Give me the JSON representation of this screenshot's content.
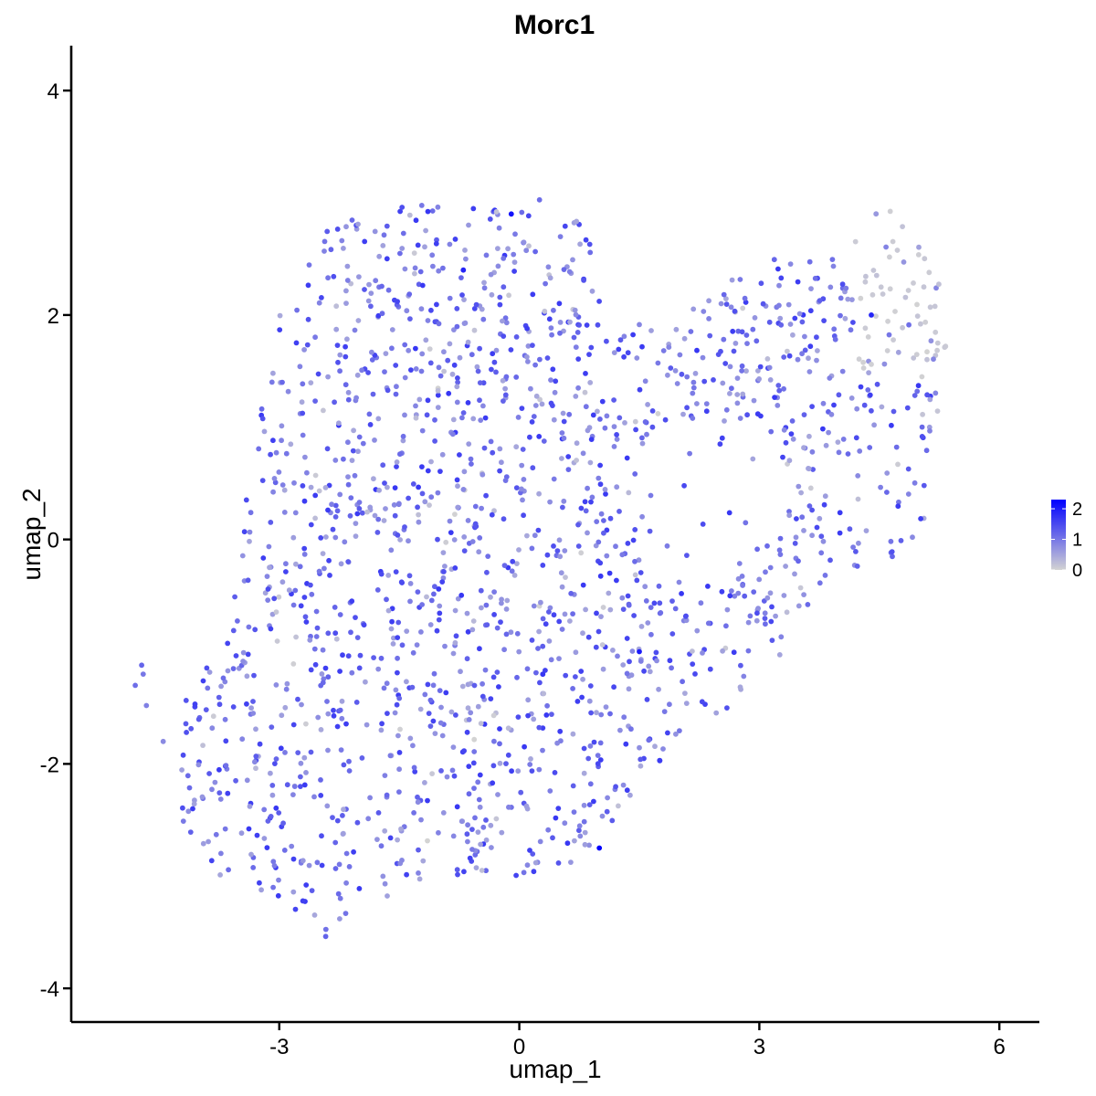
{
  "chart_data": {
    "type": "scatter",
    "title": "Morc1",
    "xlabel": "umap_1",
    "ylabel": "umap_2",
    "xlim": [
      -5.6,
      6.5
    ],
    "ylim": [
      -4.3,
      4.4
    ],
    "x_ticks": [
      {
        "value": -3,
        "label": "-3"
      },
      {
        "value": 0,
        "label": "0"
      },
      {
        "value": 3,
        "label": "3"
      },
      {
        "value": 6,
        "label": "6"
      }
    ],
    "y_ticks": [
      {
        "value": -4,
        "label": "-4"
      },
      {
        "value": -2,
        "label": "-2"
      },
      {
        "value": 0,
        "label": "0"
      },
      {
        "value": 2,
        "label": "2"
      },
      {
        "value": 4,
        "label": "4"
      }
    ],
    "grid": false,
    "legend": {
      "placement": "right",
      "type": "colorbar",
      "min": 0,
      "max": 2.3,
      "ticks": [
        {
          "value": 0,
          "label": "0"
        },
        {
          "value": 1,
          "label": "1"
        },
        {
          "value": 2,
          "label": "2"
        }
      ],
      "low_color": "#d3d3d3",
      "high_color": "#0000ff"
    },
    "cluster_summary": [
      {
        "region": "left-upper",
        "x_range": [
          -3.2,
          -0.1
        ],
        "y_range": [
          -0.5,
          3.0
        ],
        "expression_range": [
          0.4,
          1.6
        ]
      },
      {
        "region": "center",
        "x_range": [
          -0.1,
          3.5
        ],
        "y_range": [
          -1.5,
          2.0
        ],
        "expression_range": [
          0.3,
          1.5
        ]
      },
      {
        "region": "left-lower",
        "x_range": [
          -4.2,
          -0.4
        ],
        "y_range": [
          -3.5,
          -0.5
        ],
        "expression_range": [
          0.5,
          1.7
        ]
      },
      {
        "region": "right-upper",
        "x_range": [
          4.3,
          5.4
        ],
        "y_range": [
          1.5,
          3.0
        ],
        "expression_range": [
          0.0,
          0.2
        ]
      },
      {
        "region": "right-lower",
        "x_range": [
          3.5,
          5.3
        ],
        "y_range": [
          -0.8,
          1.3
        ],
        "expression_range": [
          0.4,
          1.4
        ]
      }
    ],
    "highlighted_points": [
      {
        "x": 1.0,
        "y": -2.75,
        "value": 2.3
      },
      {
        "x": -0.1,
        "y": 2.9,
        "value": 2.1
      },
      {
        "x": 1.5,
        "y": -1.0,
        "value": 2.0
      },
      {
        "x": -0.7,
        "y": 2.4,
        "value": 1.9
      },
      {
        "x": 4.4,
        "y": 2.0,
        "value": 1.9
      }
    ],
    "isolated_points": [
      {
        "x": -4.8,
        "y": -1.3,
        "value": 1.1
      },
      {
        "x": -4.7,
        "y": -1.2,
        "value": 1.0
      },
      {
        "x": -4.72,
        "y": -1.12,
        "value": 1.2
      },
      {
        "x": -4.66,
        "y": -1.48,
        "value": 0.9
      },
      {
        "x": -4.45,
        "y": -1.8,
        "value": 0.8
      }
    ]
  },
  "colors": {
    "background": "#ffffff",
    "axis": "#000000"
  }
}
